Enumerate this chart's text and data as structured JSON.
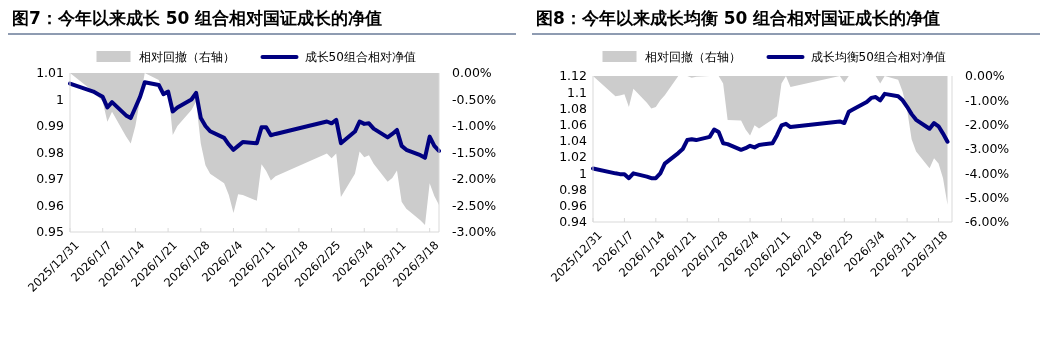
{
  "chart_data": [
    {
      "type": "line",
      "title": "图7：今年以来成长 50 组合相对国证成长的净值",
      "legend": "top",
      "x": [
        "2025-12-31",
        "2026-01-05",
        "2026-01-06",
        "2026-01-07",
        "2026-01-08",
        "2026-01-09",
        "2026-01-12",
        "2026-01-13",
        "2026-01-14",
        "2026-01-15",
        "2026-01-16",
        "2026-01-19",
        "2026-01-20",
        "2026-01-21",
        "2026-01-22",
        "2026-01-23",
        "2026-01-26",
        "2026-01-27",
        "2026-01-28",
        "2026-01-29",
        "2026-01-30",
        "2026-02-02",
        "2026-02-03",
        "2026-02-04",
        "2026-02-05",
        "2026-02-06",
        "2026-02-09",
        "2026-02-10",
        "2026-02-11",
        "2026-02-12",
        "2026-02-13",
        "2026-02-24",
        "2026-02-25",
        "2026-02-26",
        "2026-02-27",
        "2026-03-02",
        "2026-03-03",
        "2026-03-04",
        "2026-03-05",
        "2026-03-06",
        "2026-03-09",
        "2026-03-10",
        "2026-03-11",
        "2026-03-12",
        "2026-03-13",
        "2026-03-16",
        "2026-03-17",
        "2026-03-18",
        "2026-03-19",
        "2026-03-20"
      ],
      "xlim": [
        "2025-12-31",
        "2026-03-20"
      ],
      "xticks": [
        {
          "value": "2025-12-31",
          "label": "2025/12/31"
        },
        {
          "value": "2026-01-07",
          "label": "2026/1/7"
        },
        {
          "value": "2026-01-14",
          "label": "2026/1/14"
        },
        {
          "value": "2026-01-21",
          "label": "2026/1/21"
        },
        {
          "value": "2026-01-28",
          "label": "2026/1/28"
        },
        {
          "value": "2026-02-04",
          "label": "2026/2/4"
        },
        {
          "value": "2026-02-11",
          "label": "2026/2/11"
        },
        {
          "value": "2026-02-18",
          "label": "2026/2/18"
        },
        {
          "value": "2026-02-25",
          "label": "2026/2/25"
        },
        {
          "value": "2026-03-04",
          "label": "2026/3/4"
        },
        {
          "value": "2026-03-11",
          "label": "2026/3/11"
        },
        {
          "value": "2026-03-18",
          "label": "2026/3/18"
        }
      ],
      "ylim": [
        0.95,
        1.01
      ],
      "yticks": [
        0.95,
        0.96,
        0.97,
        0.98,
        0.99,
        1,
        1.01
      ],
      "y2lim": [
        -3,
        0
      ],
      "y2ticks": [
        {
          "value": -3,
          "label": "-3.00%"
        },
        {
          "value": -2.5,
          "label": "-2.50%"
        },
        {
          "value": -2,
          "label": "-2.00%"
        },
        {
          "value": -1.5,
          "label": "-1.50%"
        },
        {
          "value": -1,
          "label": "-1.00%"
        },
        {
          "value": -0.5,
          "label": "-0.50%"
        },
        {
          "value": 0,
          "label": "0.00%"
        }
      ],
      "series": [
        {
          "name": "相对回撤（右轴）",
          "type": "area",
          "axis": "y2",
          "color": "#cccccc",
          "values": [
            0,
            -0.35,
            -0.45,
            -0.54,
            -0.92,
            -0.73,
            -1.2,
            -1.33,
            -1.0,
            -0.5,
            0,
            -0.13,
            -0.38,
            -0.3,
            -1.17,
            -1.0,
            -0.7,
            -0.54,
            -1.33,
            -1.74,
            -1.9,
            -2.08,
            -2.3,
            -2.64,
            -2.29,
            -2.3,
            -2.41,
            -1.72,
            -1.85,
            -2.03,
            -1.95,
            -1.52,
            -1.61,
            -1.52,
            -2.34,
            -1.9,
            -1.48,
            -1.59,
            -1.55,
            -1.71,
            -2.05,
            -1.98,
            -1.84,
            -2.43,
            -2.56,
            -2.78,
            -2.87,
            -2.08,
            -2.32,
            -2.49
          ]
        },
        {
          "name": "成长50组合相对净值",
          "type": "line",
          "color": "#000080",
          "values": [
            1.006,
            1.003,
            1.002,
            1.001,
            0.997,
            0.999,
            0.994,
            0.993,
            0.997,
            1.001,
            1.0065,
            1.0055,
            1.002,
            1.003,
            0.9955,
            0.997,
            1.0,
            1.0025,
            0.993,
            0.99,
            0.988,
            0.9855,
            0.983,
            0.981,
            0.9825,
            0.984,
            0.9835,
            0.9895,
            0.9895,
            0.9865,
            0.987,
            0.9917,
            0.991,
            0.9923,
            0.9835,
            0.9879,
            0.9917,
            0.9908,
            0.991,
            0.989,
            0.9857,
            0.987,
            0.9885,
            0.9825,
            0.981,
            0.979,
            0.978,
            0.986,
            0.9825,
            0.9806
          ]
        }
      ]
    },
    {
      "type": "line",
      "title": "图8：今年以来成长均衡 50 组合相对国证成长的净值",
      "legend": "top",
      "x": [
        "2025-12-31",
        "2026-01-05",
        "2026-01-06",
        "2026-01-07",
        "2026-01-08",
        "2026-01-09",
        "2026-01-12",
        "2026-01-13",
        "2026-01-14",
        "2026-01-15",
        "2026-01-16",
        "2026-01-19",
        "2026-01-20",
        "2026-01-21",
        "2026-01-22",
        "2026-01-23",
        "2026-01-26",
        "2026-01-27",
        "2026-01-28",
        "2026-01-29",
        "2026-01-30",
        "2026-02-02",
        "2026-02-03",
        "2026-02-04",
        "2026-02-05",
        "2026-02-06",
        "2026-02-09",
        "2026-02-10",
        "2026-02-11",
        "2026-02-12",
        "2026-02-13",
        "2026-02-24",
        "2026-02-25",
        "2026-02-26",
        "2026-02-27",
        "2026-03-02",
        "2026-03-03",
        "2026-03-04",
        "2026-03-05",
        "2026-03-06",
        "2026-03-09",
        "2026-03-10",
        "2026-03-11",
        "2026-03-12",
        "2026-03-13",
        "2026-03-16",
        "2026-03-17",
        "2026-03-18",
        "2026-03-19",
        "2026-03-20"
      ],
      "xlim": [
        "2025-12-31",
        "2026-03-21"
      ],
      "xticks": [
        {
          "value": "2025-12-31",
          "label": "2025/12/31"
        },
        {
          "value": "2026-01-07",
          "label": "2026/1/7"
        },
        {
          "value": "2026-01-14",
          "label": "2026/1/14"
        },
        {
          "value": "2026-01-21",
          "label": "2026/1/21"
        },
        {
          "value": "2026-01-28",
          "label": "2026/1/28"
        },
        {
          "value": "2026-02-04",
          "label": "2026/2/4"
        },
        {
          "value": "2026-02-11",
          "label": "2026/2/11"
        },
        {
          "value": "2026-02-18",
          "label": "2026/2/18"
        },
        {
          "value": "2026-02-25",
          "label": "2026/2/25"
        },
        {
          "value": "2026-03-04",
          "label": "2026/3/4"
        },
        {
          "value": "2026-03-11",
          "label": "2026/3/11"
        },
        {
          "value": "2026-03-18",
          "label": "2026/3/18"
        }
      ],
      "ylim": [
        0.94,
        1.12
      ],
      "yticks": [
        0.94,
        0.96,
        0.98,
        1,
        1.02,
        1.04,
        1.06,
        1.08,
        1.1,
        1.12
      ],
      "y2lim": [
        -6,
        0
      ],
      "y2ticks": [
        {
          "value": -6,
          "label": "-6.00%"
        },
        {
          "value": -5,
          "label": "-5.00%"
        },
        {
          "value": -4,
          "label": "-4.00%"
        },
        {
          "value": -3,
          "label": "-3.00%"
        },
        {
          "value": -2,
          "label": "-2.00%"
        },
        {
          "value": -1,
          "label": "-1.00%"
        },
        {
          "value": 0,
          "label": "0.00%"
        }
      ],
      "series": [
        {
          "name": "相对回撤（右轴）",
          "type": "area",
          "axis": "y2",
          "color": "#cccccc",
          "values": [
            0,
            -0.83,
            -0.8,
            -0.75,
            -1.27,
            -0.52,
            -1.1,
            -1.34,
            -1.27,
            -1.0,
            -0.79,
            0,
            0,
            0,
            -0.07,
            -0.03,
            0,
            0,
            0,
            -0.31,
            -1.81,
            -1.83,
            -2.2,
            -2.45,
            -2.02,
            -2.16,
            -1.79,
            -1.65,
            -0.31,
            0,
            -0.45,
            0,
            -0.27,
            0,
            0,
            0,
            0,
            0,
            -0.31,
            0,
            -0.15,
            -0.65,
            -1.4,
            -2.6,
            -3.1,
            -3.79,
            -3.38,
            -3.6,
            -4.2,
            -5.29
          ]
        },
        {
          "name": "成长均衡50组合相对净值",
          "type": "line",
          "color": "#000080",
          "values": [
            1.006,
            1.0,
            0.999,
            0.999,
            0.994,
            1.0,
            0.996,
            0.994,
            0.994,
            1.0,
            1.012,
            1.025,
            1.03,
            1.041,
            1.042,
            1.041,
            1.045,
            1.054,
            1.051,
            1.037,
            1.036,
            1.029,
            1.031,
            1.034,
            1.032,
            1.035,
            1.037,
            1.047,
            1.059,
            1.061,
            1.057,
            1.064,
            1.062,
            1.076,
            1.079,
            1.088,
            1.093,
            1.094,
            1.09,
            1.098,
            1.095,
            1.09,
            1.082,
            1.073,
            1.066,
            1.055,
            1.062,
            1.058,
            1.049,
            1.039
          ]
        }
      ]
    }
  ]
}
